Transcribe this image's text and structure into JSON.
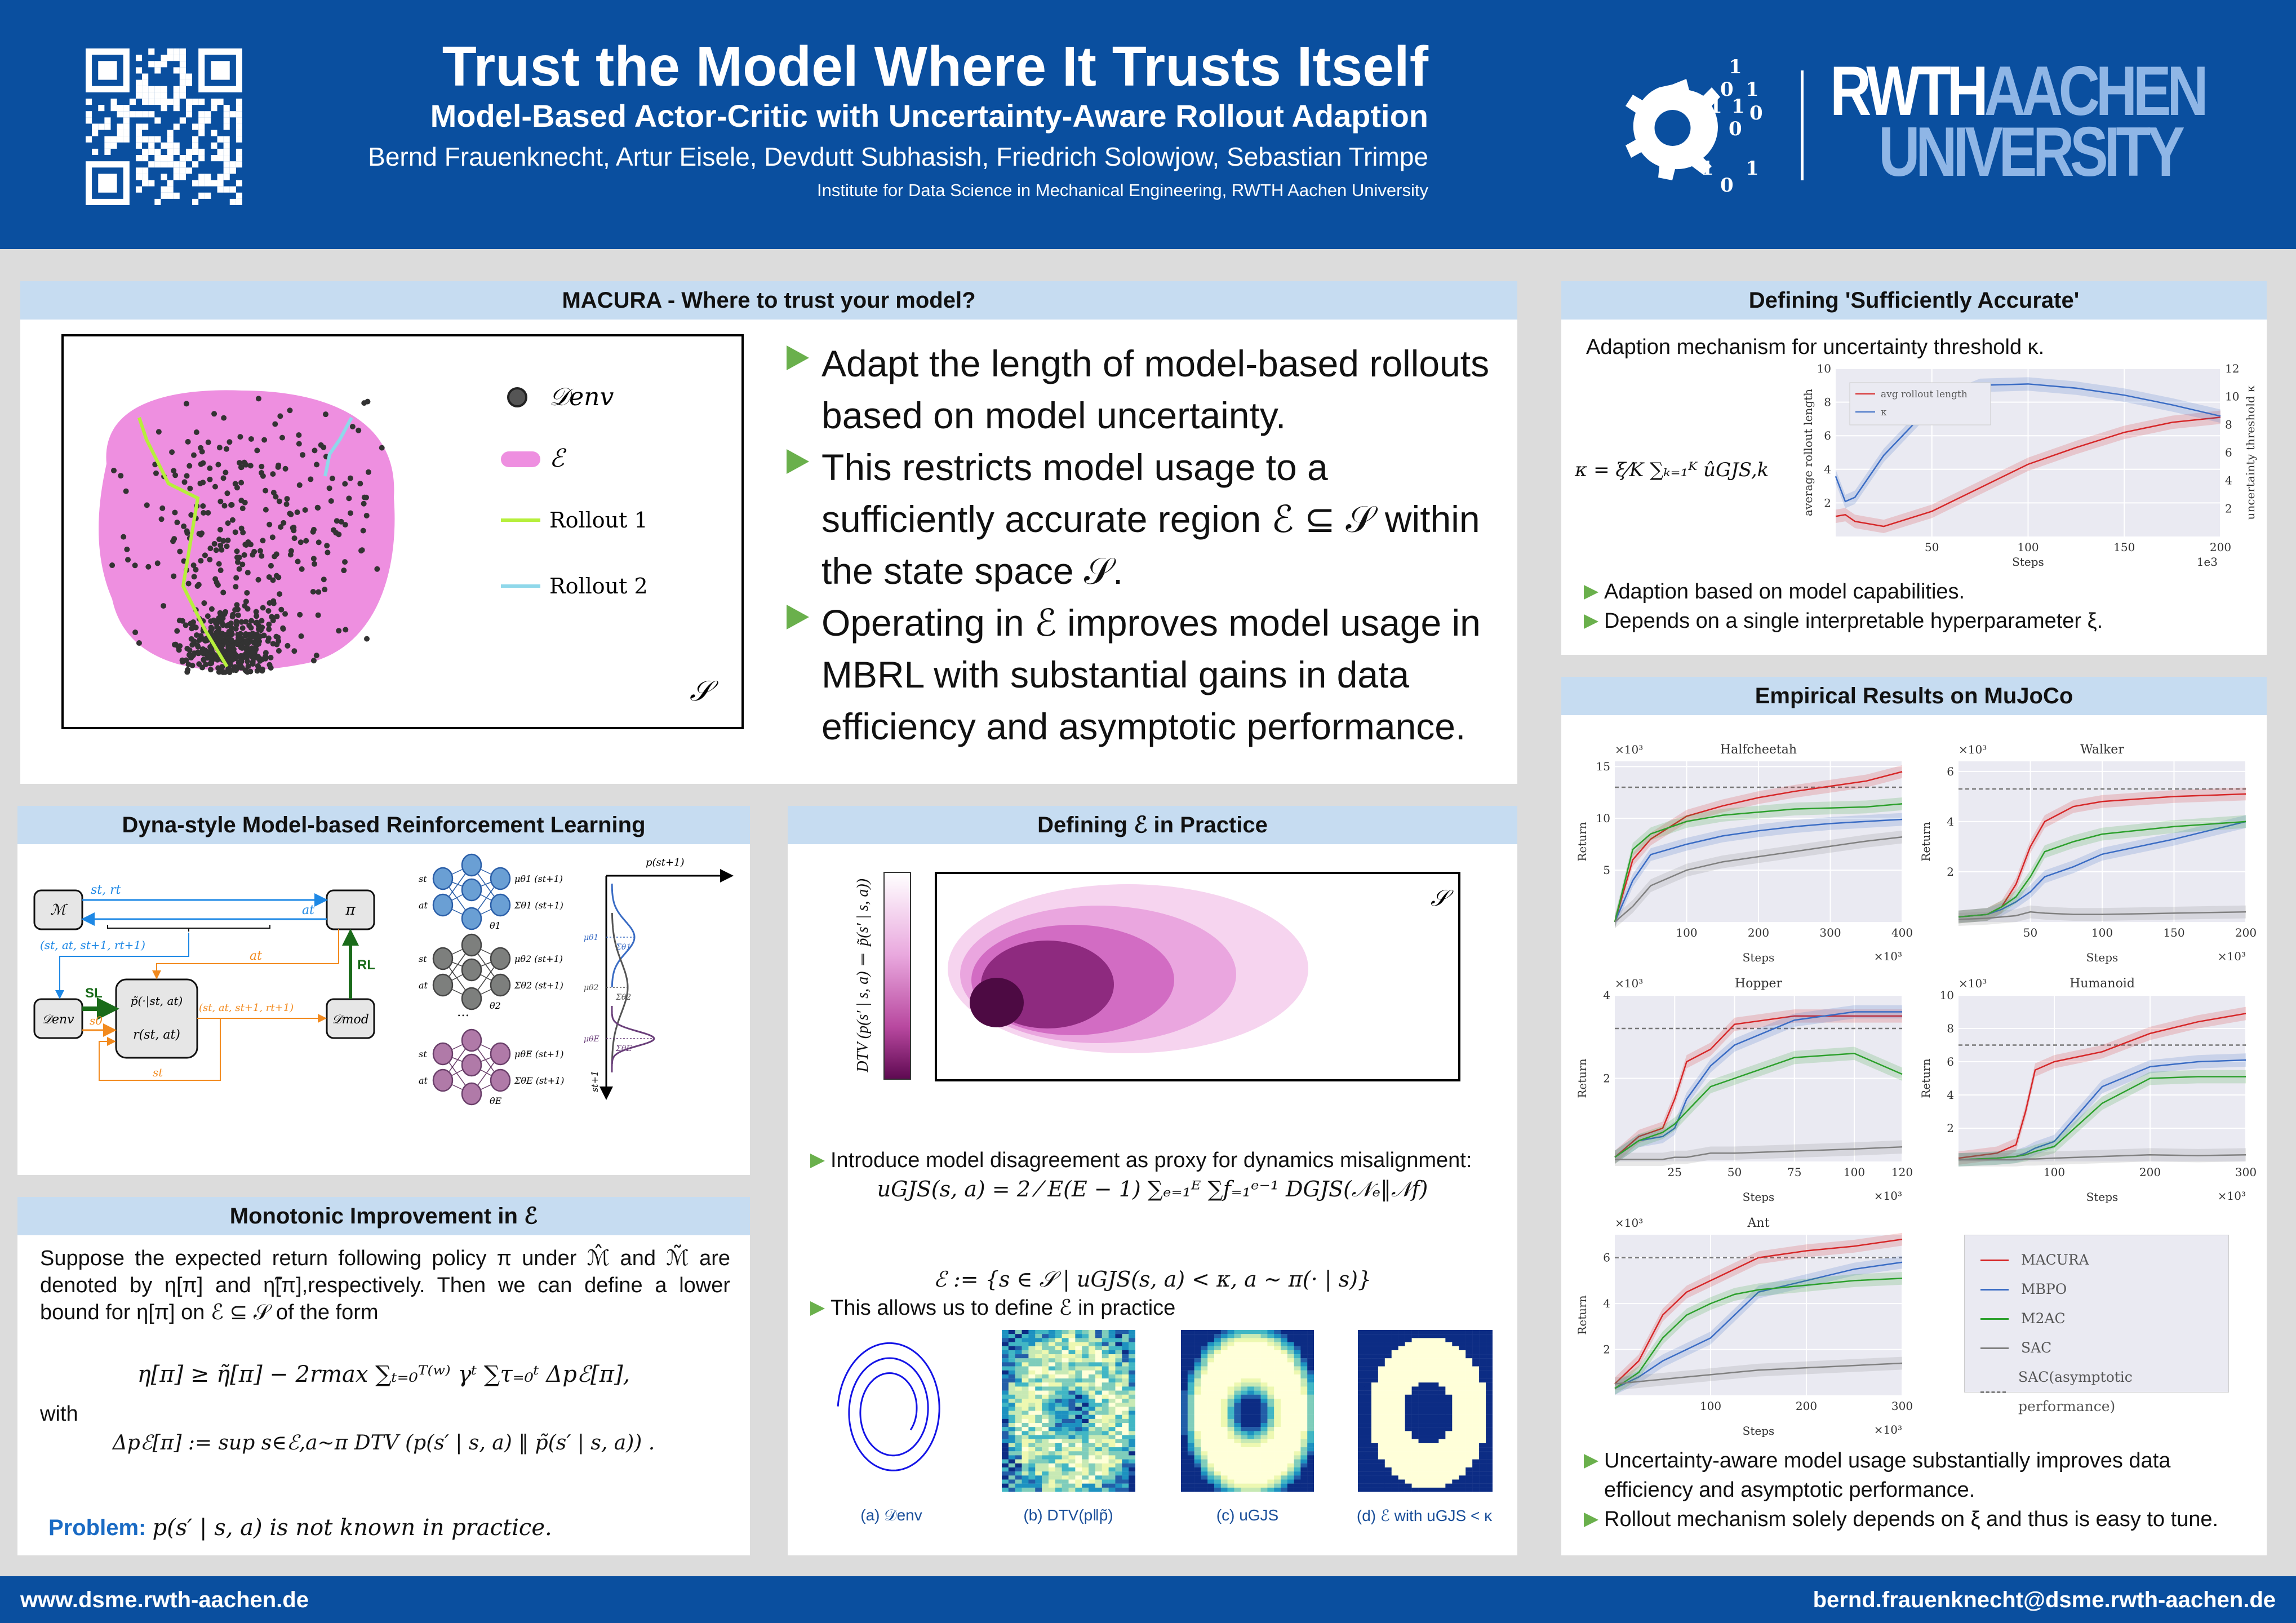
{
  "header": {
    "title": "Trust the Model Where It Trusts Itself",
    "subtitle": "Model-Based Actor-Critic with Uncertainty-Aware Rollout Adaption",
    "authors": "Bernd Frauenknecht, Artur Eisele, Devdutt Subhasish, Friedrich Solowjow, Sebastian Trimpe",
    "institute": "Institute for Data Science in Mechanical Engineering, RWTH Aachen University",
    "uni_rwth": "RWTH",
    "uni_aachen": "AACHEN",
    "uni_university": "UNIVERSITY",
    "logo_digits": [
      "1",
      "0",
      "1",
      "1",
      "1",
      "0",
      "0",
      "1",
      "0",
      "1"
    ]
  },
  "footer": {
    "website": "www.dsme.rwth-aachen.de",
    "email": "bernd.frauenknecht@dsme.rwth-aachen.de"
  },
  "colors": {
    "brand": "#0a4f9f",
    "section": "#c6dcf1",
    "bullet": "#6ab04c",
    "macura": "#d62728",
    "mbpo": "#3a6cc4",
    "m2ac": "#2ca02c",
    "sac": "#808080"
  },
  "macura": {
    "heading": "MACURA - Where to trust your model?",
    "legend": {
      "denv": "𝒟env",
      "e": "ℰ",
      "rollout1": "Rollout 1",
      "rollout2": "Rollout 2",
      "s": "𝒮"
    },
    "bullets": [
      "Adapt the length of model-based rollouts based on model uncertainty.",
      "This restricts model usage to a sufficiently accurate region ℰ ⊆ 𝒮 within the state space 𝒮.",
      "Operating in ℰ improves model usage in MBRL with substantial gains in data efficiency and asymptotic performance."
    ]
  },
  "dyna": {
    "heading": "Dyna-style Model-based Reinforcement Learning",
    "m": "ℳ",
    "pi": "π",
    "denv": "𝒟env",
    "dmod": "𝒟mod",
    "st_rt": "st, rt",
    "at": "at",
    "tuple": "(st, at, st+1, rt+1)",
    "at2": "at",
    "rl": "RL",
    "sl": "SL",
    "s0": "s0",
    "p_tilde": "p̃(·|st, at)",
    "r": "r(st, at)",
    "tuple2": "(st, at, st+1, rt+1)",
    "st": "st",
    "nets": [
      {
        "in1": "st",
        "in2": "at",
        "mu": "μθ1 (st+1)",
        "sigma": "Σθ1 (st+1)",
        "theta": "θ1"
      },
      {
        "in1": "st",
        "in2": "at",
        "mu": "μθ2 (st+1)",
        "sigma": "Σθ2 (st+1)",
        "theta": "θ2"
      },
      {
        "in1": "st",
        "in2": "at",
        "mu": "μθE (st+1)",
        "sigma": "ΣθE (st+1)",
        "theta": "θE"
      }
    ],
    "ellipsis": "…",
    "p_axis": "p(st+1)",
    "s_axis": "st+1",
    "mus": [
      "μθ1",
      "μθ2",
      "μθE"
    ],
    "sigmas": [
      "Σθ1",
      "Σθ2",
      "ΣθE"
    ]
  },
  "mono": {
    "heading": "Monotonic Improvement in ℰ",
    "intro": "Suppose the expected return following policy π under ℳ̂ and ℳ̃ are denoted by η[π] and η̃[π],respectively. Then we can define a lower bound for η[π] on ℰ ⊆ 𝒮 of the form",
    "eq1": "η[π] ≥ η̃[π] − 2rmax ∑ₜ₌₀ᵀ⁽ʷ⁾ γᵗ ∑τ₌₀ᵗ Δpℰ[π],",
    "with": "with",
    "eq2": "Δpℰ[π] := sup s∈ℰ,a∼π DTV (p(s′ | s, a) ‖ p̃(s′ | s, a)) .",
    "problem_label": "Problem:",
    "problem_text": "p(s′ | s, a) is not known in practice."
  },
  "practice": {
    "heading": "Defining ℰ in Practice",
    "colorbar_label": "DTV (p(s′ | s, a) ‖ p̃(s′ | s, a))",
    "s": "𝒮",
    "b1": "Introduce model disagreement as proxy for dynamics misalignment:",
    "eq1": "uGJS(s, a) = 2 ⁄ E(E − 1) ∑ₑ₌₁ᴱ ∑f₌₁ᵉ⁻¹ DGJS(𝒩ₑ‖𝒩f)",
    "b2": "This allows us to define ℰ in practice",
    "eq2": "ℰ := {s ∈ 𝒮 | uGJS(s, a) < κ, a ∼ π(· | s)}",
    "captions": [
      "(a) 𝒟env",
      "(b) DTV(p‖p̃)",
      "(c) uGJS",
      "(d) ℰ with uGJS < κ"
    ]
  },
  "accurate": {
    "heading": "Defining 'Sufficiently Accurate'",
    "intro": "Adaption mechanism for uncertainty threshold κ.",
    "eq": "κ = ξ⁄K ∑ₖ₌₁ᴷ ûGJS,k",
    "bullets": [
      "Adaption based on model capabilities.",
      "Depends on a single interpretable hyperparameter ξ."
    ]
  },
  "empirical": {
    "heading": "Empirical Results on MuJoCo",
    "legend": [
      {
        "name": "MACURA",
        "color": "#d62728",
        "dash": false
      },
      {
        "name": "MBPO",
        "color": "#3a6cc4",
        "dash": false
      },
      {
        "name": "M2AC",
        "color": "#2ca02c",
        "dash": false
      },
      {
        "name": "SAC",
        "color": "#808080",
        "dash": false
      },
      {
        "name": "SAC(asymptotic performance)",
        "color": "#808080",
        "dash": true
      }
    ],
    "bullets": [
      "Uncertainty-aware model usage substantially improves data efficiency and asymptotic performance.",
      "Rollout mechanism solely depends on ξ and thus is easy to tune."
    ]
  },
  "chart_data": [
    {
      "type": "line",
      "title": "",
      "xlabel": "Steps",
      "xscale": "1e3",
      "ylabel": "average rollout length",
      "y2label": "uncertainty threshold κ",
      "xlim": [
        0,
        200
      ],
      "ylim": [
        0,
        10
      ],
      "y2lim": [
        0,
        12
      ],
      "xticks": [
        50,
        100,
        150,
        200
      ],
      "yticks": [
        2,
        4,
        6,
        8,
        10
      ],
      "y2ticks": [
        2,
        4,
        6,
        8,
        10,
        12
      ],
      "x": [
        0,
        5,
        10,
        25,
        50,
        75,
        100,
        125,
        150,
        175,
        200
      ],
      "series": [
        {
          "name": "avg rollout length",
          "color": "#d62728",
          "axis": "left",
          "y": [
            1.2,
            1.3,
            0.9,
            0.6,
            1.5,
            2.9,
            4.3,
            5.3,
            6.2,
            6.8,
            7.1
          ]
        },
        {
          "name": "κ",
          "color": "#3a6cc4",
          "axis": "right",
          "y": [
            4.3,
            2.5,
            2.8,
            5.8,
            9.4,
            10.8,
            10.9,
            10.6,
            10.1,
            9.4,
            8.6
          ]
        }
      ]
    },
    {
      "type": "line",
      "title": "Halfcheetah",
      "xlabel": "Steps",
      "ylabel": "Return",
      "xscale": "×10³",
      "yscale": "×10³",
      "xlim": [
        0,
        400
      ],
      "ylim": [
        0,
        15.5
      ],
      "xticks": [
        100,
        200,
        300,
        400
      ],
      "yticks": [
        5,
        10,
        15
      ],
      "asymptote": 13,
      "x": [
        0,
        25,
        50,
        100,
        150,
        200,
        250,
        300,
        350,
        400
      ],
      "series": [
        {
          "name": "MACURA",
          "color": "#d62728",
          "y": [
            0,
            6,
            8,
            10.2,
            11.2,
            12,
            12.6,
            13.1,
            13.6,
            14.5
          ]
        },
        {
          "name": "MBPO",
          "color": "#3a6cc4",
          "y": [
            0,
            4,
            6.5,
            7.5,
            8.3,
            8.8,
            9.2,
            9.5,
            9.7,
            9.9
          ]
        },
        {
          "name": "M2AC",
          "color": "#2ca02c",
          "y": [
            0,
            7,
            8.5,
            9.7,
            10.3,
            10.6,
            10.9,
            11,
            11.1,
            11.4
          ]
        },
        {
          "name": "SAC",
          "color": "#808080",
          "y": [
            0,
            1.5,
            3.5,
            5,
            5.8,
            6.3,
            6.8,
            7.3,
            7.8,
            8.2
          ]
        }
      ]
    },
    {
      "type": "line",
      "title": "Walker",
      "xlabel": "Steps",
      "ylabel": "Return",
      "xscale": "×10³",
      "yscale": "×10³",
      "xlim": [
        0,
        200
      ],
      "ylim": [
        0,
        6.4
      ],
      "xticks": [
        50,
        100,
        150,
        200
      ],
      "yticks": [
        2,
        4,
        6
      ],
      "asymptote": 5.3,
      "x": [
        0,
        20,
        30,
        40,
        50,
        60,
        80,
        100,
        150,
        200
      ],
      "series": [
        {
          "name": "MACURA",
          "color": "#d62728",
          "y": [
            0.2,
            0.3,
            0.6,
            1.5,
            3,
            4,
            4.6,
            4.8,
            5,
            5.1
          ]
        },
        {
          "name": "MBPO",
          "color": "#3a6cc4",
          "y": [
            0.2,
            0.3,
            0.5,
            0.8,
            1.2,
            1.8,
            2.2,
            2.7,
            3.3,
            4
          ]
        },
        {
          "name": "M2AC",
          "color": "#2ca02c",
          "y": [
            0.2,
            0.3,
            0.6,
            1,
            1.8,
            2.8,
            3.2,
            3.5,
            3.8,
            4
          ]
        },
        {
          "name": "SAC",
          "color": "#808080",
          "y": [
            0.1,
            0.15,
            0.2,
            0.25,
            0.4,
            0.35,
            0.3,
            0.3,
            0.35,
            0.4
          ]
        }
      ]
    },
    {
      "type": "line",
      "title": "Hopper",
      "xlabel": "Steps",
      "ylabel": "Return",
      "xscale": "×10³",
      "yscale": "×10³",
      "xlim": [
        0,
        120
      ],
      "ylim": [
        0,
        4
      ],
      "xticks": [
        25,
        50,
        75,
        100,
        120
      ],
      "yticks": [
        2,
        4
      ],
      "asymptote": 3.2,
      "x": [
        0,
        10,
        20,
        25,
        30,
        40,
        50,
        75,
        100,
        120
      ],
      "series": [
        {
          "name": "MACURA",
          "color": "#d62728",
          "y": [
            0.1,
            0.6,
            0.8,
            1.5,
            2.4,
            2.7,
            3.3,
            3.5,
            3.5,
            3.5
          ]
        },
        {
          "name": "MBPO",
          "color": "#3a6cc4",
          "y": [
            0.1,
            0.5,
            0.6,
            0.8,
            1.5,
            2.3,
            2.8,
            3.4,
            3.6,
            3.6
          ]
        },
        {
          "name": "M2AC",
          "color": "#2ca02c",
          "y": [
            0.1,
            0.5,
            0.7,
            0.9,
            1.2,
            1.8,
            2,
            2.5,
            2.6,
            2.1
          ]
        },
        {
          "name": "SAC",
          "color": "#808080",
          "y": [
            0.05,
            0.05,
            0.05,
            0.1,
            0.1,
            0.2,
            0.2,
            0.25,
            0.3,
            0.35
          ]
        }
      ]
    },
    {
      "type": "line",
      "title": "Humanoid",
      "xlabel": "Steps",
      "ylabel": "Return",
      "xscale": "×10³",
      "yscale": "×10³",
      "xlim": [
        0,
        300
      ],
      "ylim": [
        0,
        10
      ],
      "xticks": [
        100,
        200,
        300
      ],
      "yticks": [
        2,
        4,
        6,
        8,
        10
      ],
      "asymptote": 7,
      "x": [
        0,
        40,
        60,
        70,
        80,
        100,
        150,
        200,
        250,
        300
      ],
      "series": [
        {
          "name": "MACURA",
          "color": "#d62728",
          "y": [
            0.2,
            0.5,
            1,
            3,
            5.5,
            6,
            6.6,
            7.7,
            8.4,
            8.9
          ]
        },
        {
          "name": "MBPO",
          "color": "#3a6cc4",
          "y": [
            0.1,
            0.2,
            0.3,
            0.5,
            0.8,
            1.2,
            4.5,
            5.7,
            6,
            6.1
          ]
        },
        {
          "name": "M2AC",
          "color": "#2ca02c",
          "y": [
            0.1,
            0.2,
            0.3,
            0.4,
            0.6,
            0.9,
            3.5,
            5,
            5.1,
            5.1
          ]
        },
        {
          "name": "SAC",
          "color": "#808080",
          "y": [
            0.1,
            0.1,
            0.1,
            0.15,
            0.15,
            0.2,
            0.3,
            0.4,
            0.35,
            0.4
          ]
        }
      ]
    },
    {
      "type": "line",
      "title": "Ant",
      "xlabel": "Steps",
      "ylabel": "Return",
      "xscale": "×10³",
      "yscale": "×10³",
      "xlim": [
        0,
        300
      ],
      "ylim": [
        0,
        7
      ],
      "xticks": [
        100,
        200,
        300
      ],
      "yticks": [
        2,
        4,
        6
      ],
      "asymptote": 6,
      "x": [
        0,
        25,
        50,
        75,
        100,
        125,
        150,
        200,
        250,
        300
      ],
      "series": [
        {
          "name": "MACURA",
          "color": "#d62728",
          "y": [
            0.5,
            1.5,
            3.5,
            4.5,
            5,
            5.5,
            6,
            6.3,
            6.5,
            6.8
          ]
        },
        {
          "name": "MBPO",
          "color": "#3a6cc4",
          "y": [
            0.3,
            0.8,
            1.5,
            2,
            2.5,
            3.5,
            4.5,
            5,
            5.5,
            5.8
          ]
        },
        {
          "name": "M2AC",
          "color": "#2ca02c",
          "y": [
            0.3,
            1,
            2.5,
            3.5,
            4,
            4.4,
            4.6,
            4.8,
            5,
            5.1
          ]
        },
        {
          "name": "SAC",
          "color": "#808080",
          "y": [
            0.5,
            0.6,
            0.7,
            0.8,
            0.9,
            1,
            1.1,
            1.2,
            1.3,
            1.4
          ]
        }
      ]
    }
  ]
}
